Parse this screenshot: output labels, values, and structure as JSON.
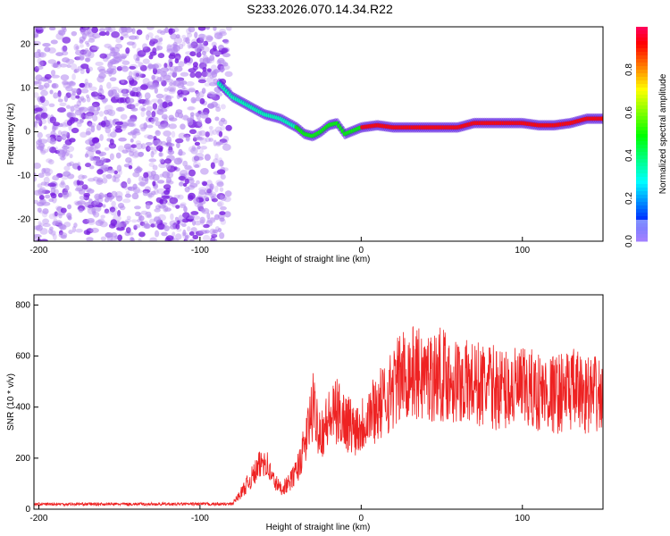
{
  "title": "S233.2026.070.14.34.R22",
  "chart_data": [
    {
      "type": "heatmap",
      "title": "S233.2026.070.14.34.R22",
      "xlabel": "Height of straight line (km)",
      "ylabel": "Frequency (Hz)",
      "xlim": [
        -203,
        150
      ],
      "ylim": [
        -25,
        24
      ],
      "xticks": [
        -200,
        -100,
        0,
        100
      ],
      "yticks": [
        -20,
        -10,
        0,
        10,
        20
      ],
      "noise_region_x": [
        -203,
        -82
      ],
      "ridge": {
        "x": [
          -88,
          -80,
          -70,
          -60,
          -50,
          -40,
          -35,
          -30,
          -25,
          -20,
          -15,
          -10,
          0,
          10,
          20,
          40,
          60,
          70,
          80,
          100,
          110,
          120,
          130,
          140,
          150
        ],
        "freq_hz": [
          11,
          8,
          6,
          4,
          3,
          1,
          -0.5,
          -1,
          0,
          1.5,
          2,
          -0.5,
          1,
          1.5,
          1,
          1,
          1,
          2,
          2,
          2,
          1.5,
          1.5,
          2,
          3,
          3
        ]
      },
      "colorbar": {
        "label": "Normalized spectral amplitude",
        "range": [
          0,
          1
        ],
        "ticks": [
          "0.0",
          "0.2",
          "0.4",
          "0.6",
          "0.8"
        ]
      }
    },
    {
      "type": "line",
      "xlabel": "Height of straight line (km)",
      "ylabel": "SNR (10 * v/v)",
      "xlim": [
        -203,
        150
      ],
      "ylim": [
        0,
        840
      ],
      "xticks": [
        -200,
        -100,
        0,
        100
      ],
      "yticks": [
        0,
        200,
        400,
        600,
        800
      ],
      "color": "#ee2222",
      "x": [
        -203,
        -80,
        -75,
        -65,
        -60,
        -55,
        -50,
        -45,
        -40,
        -35,
        -30,
        -25,
        -20,
        -15,
        -10,
        -5,
        0,
        5,
        10,
        15,
        20,
        25,
        30,
        40,
        50,
        60,
        70,
        80,
        90,
        100,
        110,
        120,
        130,
        140,
        150
      ],
      "y": [
        20,
        20,
        60,
        150,
        200,
        120,
        80,
        100,
        150,
        250,
        400,
        300,
        350,
        380,
        350,
        320,
        330,
        380,
        400,
        430,
        480,
        520,
        540,
        520,
        530,
        500,
        490,
        480,
        470,
        470,
        460,
        450,
        470,
        450,
        440
      ]
    }
  ]
}
